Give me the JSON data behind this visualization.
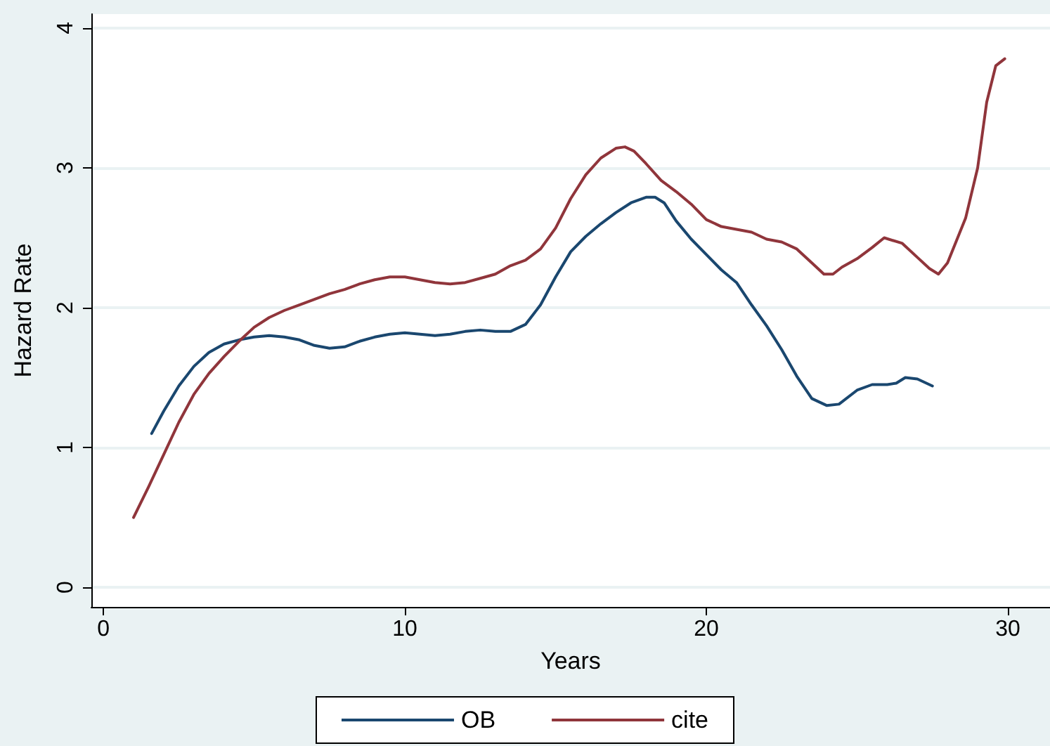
{
  "chart_data": {
    "type": "line",
    "xlabel": "Years",
    "ylabel": "Hazard Rate",
    "xlim": [
      -0.4,
      31.4
    ],
    "xticks": [
      0,
      10,
      20,
      30
    ],
    "ylim": [
      -0.14,
      4.1
    ],
    "yticks": [
      0,
      1,
      2,
      3,
      4
    ],
    "grid": "y",
    "legend": "bottom",
    "marker": "none",
    "line_style": "solid",
    "series": [
      {
        "name": "OB",
        "color": "#1a476f",
        "x": [
          1.6,
          2,
          2.5,
          3,
          3.5,
          4,
          4.5,
          5,
          5.5,
          6,
          6.5,
          7,
          7.5,
          8,
          8.5,
          9,
          9.5,
          10,
          10.5,
          11,
          11.5,
          12,
          12.5,
          13,
          13.5,
          14,
          14.5,
          15,
          15.5,
          16,
          16.5,
          17,
          17.5,
          18,
          18.3,
          18.6,
          19,
          19.5,
          20,
          20.5,
          21,
          21.5,
          22,
          22.5,
          23,
          23.5,
          24,
          24.4,
          25,
          25.5,
          26,
          26.3,
          26.6,
          27,
          27.5
        ],
        "values": [
          1.1,
          1.26,
          1.44,
          1.58,
          1.68,
          1.74,
          1.77,
          1.79,
          1.8,
          1.79,
          1.77,
          1.73,
          1.71,
          1.72,
          1.76,
          1.79,
          1.81,
          1.82,
          1.81,
          1.8,
          1.81,
          1.83,
          1.84,
          1.83,
          1.83,
          1.88,
          2.02,
          2.22,
          2.4,
          2.51,
          2.6,
          2.68,
          2.75,
          2.79,
          2.79,
          2.75,
          2.62,
          2.49,
          2.38,
          2.27,
          2.18,
          2.02,
          1.87,
          1.7,
          1.51,
          1.35,
          1.3,
          1.31,
          1.41,
          1.45,
          1.45,
          1.46,
          1.5,
          1.49,
          1.44
        ]
      },
      {
        "name": "cite",
        "color": "#90353b",
        "x": [
          1,
          1.5,
          2,
          2.5,
          3,
          3.5,
          4,
          4.5,
          5,
          5.5,
          6,
          6.5,
          7,
          7.5,
          8,
          8.5,
          9,
          9.5,
          10,
          10.5,
          11,
          11.5,
          12,
          12.5,
          13,
          13.5,
          14,
          14.5,
          15,
          15.5,
          16,
          16.5,
          17,
          17.3,
          17.6,
          18,
          18.5,
          19,
          19.5,
          20,
          20.5,
          21,
          21.5,
          22,
          22.5,
          23,
          23.5,
          23.9,
          24.2,
          24.5,
          25,
          25.5,
          25.9,
          26.5,
          27,
          27.4,
          27.7,
          28,
          28.6,
          29,
          29.3,
          29.6,
          29.9
        ],
        "values": [
          0.5,
          0.72,
          0.95,
          1.18,
          1.38,
          1.53,
          1.65,
          1.76,
          1.86,
          1.93,
          1.98,
          2.02,
          2.06,
          2.1,
          2.13,
          2.17,
          2.2,
          2.22,
          2.22,
          2.2,
          2.18,
          2.17,
          2.18,
          2.21,
          2.24,
          2.3,
          2.34,
          2.42,
          2.57,
          2.78,
          2.95,
          3.07,
          3.14,
          3.15,
          3.12,
          3.03,
          2.91,
          2.83,
          2.74,
          2.63,
          2.58,
          2.56,
          2.54,
          2.49,
          2.47,
          2.42,
          2.32,
          2.24,
          2.24,
          2.29,
          2.35,
          2.43,
          2.5,
          2.46,
          2.36,
          2.28,
          2.24,
          2.32,
          2.64,
          3.0,
          3.47,
          3.73,
          3.78
        ]
      }
    ]
  }
}
